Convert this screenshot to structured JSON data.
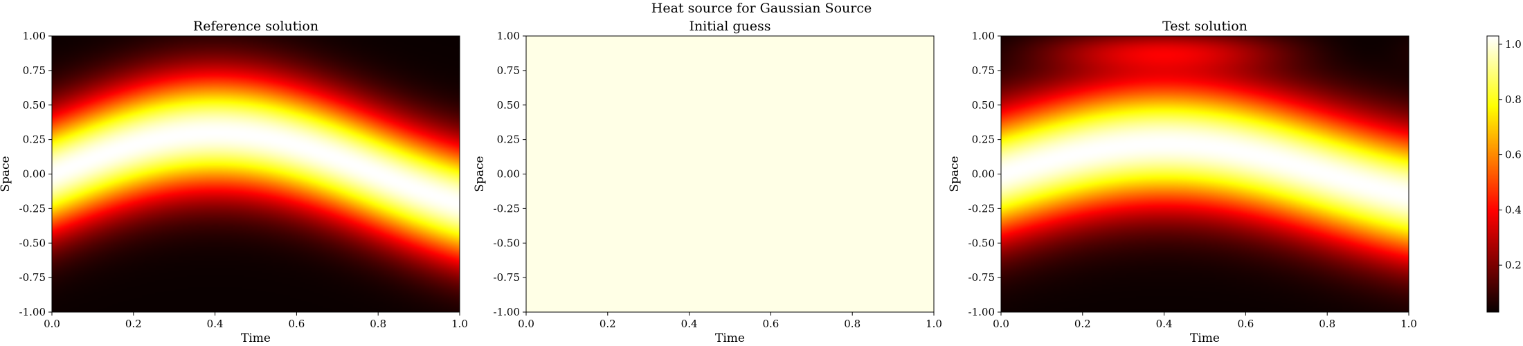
{
  "figure": {
    "suptitle": "Heat source for Gaussian Source"
  },
  "colormap": {
    "name": "hot",
    "stops": [
      {
        "t": 0.0,
        "color": "#0a0000"
      },
      {
        "t": 0.365,
        "color": "#ff0000"
      },
      {
        "t": 0.746,
        "color": "#ffff00"
      },
      {
        "t": 1.0,
        "color": "#ffffff"
      }
    ]
  },
  "chart_data": [
    {
      "type": "heatmap",
      "title": "Reference solution",
      "xlabel": "Time",
      "ylabel": "Space",
      "xlim": [
        0,
        1
      ],
      "ylim": [
        -1,
        1
      ],
      "xticks": [
        "0.0",
        "0.2",
        "0.4",
        "0.6",
        "0.8",
        "1.0"
      ],
      "yticks": [
        "-1.00",
        "-0.75",
        "-0.50",
        "-0.25",
        "0.00",
        "0.25",
        "0.50",
        "0.75",
        "1.00"
      ],
      "field": {
        "kind": "gaussian",
        "center_base": 0.0,
        "center_amplitude": 0.3,
        "center_peak_time": 0.4,
        "width": 0.42,
        "peak": 1.0
      }
    },
    {
      "type": "heatmap",
      "title": "Initial guess",
      "xlabel": "Time",
      "ylabel": "Space",
      "xlim": [
        0,
        1
      ],
      "ylim": [
        -1,
        1
      ],
      "xticks": [
        "0.0",
        "0.2",
        "0.4",
        "0.6",
        "0.8",
        "1.0"
      ],
      "yticks": [
        "-1.00",
        "-0.75",
        "-0.50",
        "-0.25",
        "0.00",
        "0.25",
        "0.50",
        "0.75",
        "1.00"
      ],
      "field": {
        "kind": "constant",
        "value": 1.0
      },
      "fill_color": "#ffffe6"
    },
    {
      "type": "heatmap",
      "title": "Test solution",
      "xlabel": "Time",
      "ylabel": "Space",
      "xlim": [
        0,
        1
      ],
      "ylim": [
        -1,
        1
      ],
      "xticks": [
        "0.0",
        "0.2",
        "0.4",
        "0.6",
        "0.8",
        "1.0"
      ],
      "yticks": [
        "-1.00",
        "-0.75",
        "-0.50",
        "-0.25",
        "0.00",
        "0.25",
        "0.50",
        "0.75",
        "1.00"
      ],
      "field": {
        "kind": "gaussian",
        "center_base": 0.0,
        "center_amplitude": 0.22,
        "center_peak_time": 0.4,
        "width": 0.45,
        "peak": 1.0,
        "edge_glow": 0.25
      }
    }
  ],
  "colorbar": {
    "ticks": [
      "0.2",
      "0.4",
      "0.6",
      "0.8",
      "1.0"
    ],
    "tick_values": [
      0.2,
      0.4,
      0.6,
      0.8,
      1.0
    ],
    "vmin": 0.03,
    "vmax": 1.03
  }
}
